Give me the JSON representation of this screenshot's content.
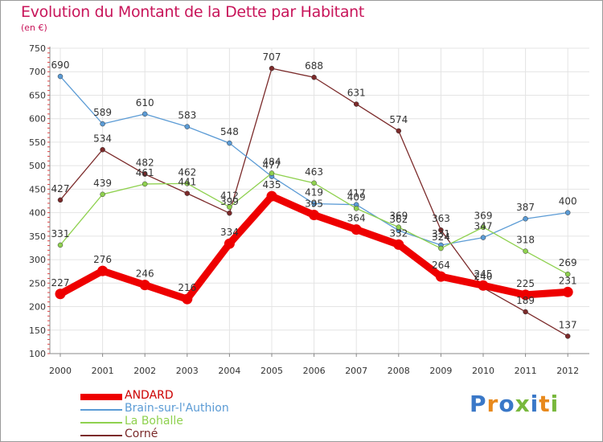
{
  "title": "Evolution du Montant de la Dette par Habitant",
  "subtitle": "(en €)",
  "logo": {
    "text": "Proxiti",
    "colors": [
      "#3a78c8",
      "#e8891c",
      "#3a78c8",
      "#78b83c",
      "#3a78c8",
      "#e8891c",
      "#78b83c"
    ]
  },
  "chart_data": {
    "type": "line",
    "title": "Evolution du Montant de la Dette par Habitant",
    "subtitle": "(en €)",
    "x": [
      "2000",
      "2001",
      "2002",
      "2003",
      "2004",
      "2005",
      "2006",
      "2007",
      "2008",
      "2009",
      "2010",
      "2011",
      "2012"
    ],
    "ylim": [
      100,
      750
    ],
    "yticks": [
      "100",
      "150",
      "200",
      "250",
      "300",
      "350",
      "400",
      "450",
      "500",
      "550",
      "600",
      "650",
      "700",
      "750"
    ],
    "grid": true,
    "legend_position": "bottom-left",
    "series": [
      {
        "name": "ANDARD",
        "color": "#ee0000",
        "values": [
          227,
          276,
          246,
          216,
          334,
          435,
          395,
          364,
          332,
          264,
          245,
          225,
          231
        ],
        "labels": [
          "227",
          "276",
          "246",
          "216",
          "334",
          "435",
          "395",
          "364",
          "332",
          "264",
          "245",
          "225",
          "231"
        ]
      },
      {
        "name": "Brain-sur-l'Authion",
        "color": "#5b9bd5",
        "values": [
          690,
          589,
          610,
          583,
          548,
          477,
          419,
          417,
          362,
          331,
          347,
          387,
          400
        ],
        "labels": [
          "690",
          "589",
          "610",
          "583",
          "548",
          "477",
          "419",
          "417",
          "362",
          "331",
          "347",
          "387",
          "400"
        ]
      },
      {
        "name": "La Bohalle",
        "color": "#8fd14f",
        "values": [
          331,
          439,
          461,
          462,
          412,
          484,
          463,
          409,
          369,
          324,
          369,
          318,
          269
        ],
        "labels": [
          "331",
          "439",
          "461",
          "462",
          "412",
          "484",
          "463",
          "409",
          "369",
          "324",
          "369",
          "318",
          "269"
        ]
      },
      {
        "name": "Corné",
        "color": "#7b2a2a",
        "values": [
          427,
          534,
          482,
          441,
          399,
          707,
          688,
          631,
          574,
          363,
          240,
          189,
          137
        ],
        "labels": [
          "427",
          "534",
          "482",
          "441",
          "399",
          "707",
          "688",
          "631",
          "574",
          "363",
          "240",
          "189",
          "137"
        ]
      }
    ]
  }
}
